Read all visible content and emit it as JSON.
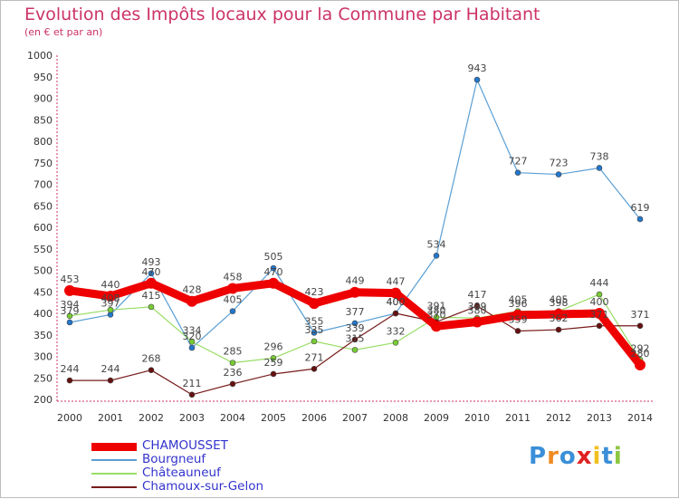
{
  "title": "Evolution des Impôts locaux pour la Commune par Habitant",
  "subtitle": "(en € et par an)",
  "logo": {
    "text": "Proxiti",
    "letters": [
      {
        "ch": "P",
        "color": "#3a8fd8"
      },
      {
        "ch": "r",
        "color": "#f08a24"
      },
      {
        "ch": "o",
        "color": "#3a8fd8"
      },
      {
        "ch": "x",
        "color": "#e02020"
      },
      {
        "ch": "i",
        "color": "#f0c020"
      },
      {
        "ch": "t",
        "color": "#3a8fd8"
      },
      {
        "ch": "i",
        "color": "#8cc63f"
      }
    ]
  },
  "chart_data": {
    "type": "line",
    "title": "Evolution des Impôts locaux pour la Commune par Habitant",
    "ylabel": "(en € et par an)",
    "xlabel": "",
    "x": [
      "2000",
      "2001",
      "2002",
      "2003",
      "2004",
      "2005",
      "2006",
      "2007",
      "2008",
      "2009",
      "2010",
      "2011",
      "2012",
      "2013",
      "2014"
    ],
    "ylim": [
      200,
      1000
    ],
    "yticks": [
      200,
      250,
      300,
      350,
      400,
      450,
      500,
      550,
      600,
      650,
      700,
      750,
      800,
      850,
      900,
      950,
      1000
    ],
    "grid": false,
    "legend_position": "bottom-left",
    "series": [
      {
        "name": "CHAMOUSSET",
        "color": "#ee0000",
        "marker": "#ee0000",
        "thick": true,
        "values": [
          453,
          440,
          470,
          428,
          458,
          470,
          423,
          449,
          447,
          370,
          380,
          396,
          398,
          400,
          280
        ],
        "labels": [
          "453",
          "440",
          "470",
          "428",
          "458",
          "470",
          "423",
          "449",
          "447",
          "370",
          "380",
          "396",
          "398",
          "400",
          "280"
        ]
      },
      {
        "name": "Bourgneuf",
        "color": "#5a9fd4",
        "marker": "#2277cc",
        "thick": false,
        "values": [
          379,
          397,
          493,
          320,
          405,
          505,
          355,
          377,
          400,
          534,
          943,
          727,
          723,
          738,
          619
        ],
        "labels": [
          "379",
          "397",
          "493",
          "320",
          "405",
          "505",
          "355",
          "377",
          "400",
          "534",
          "943",
          "727",
          "723",
          "738",
          "619"
        ]
      },
      {
        "name": "Châteauneuf",
        "color": "#99dd66",
        "marker": "#77cc33",
        "thick": false,
        "values": [
          394,
          408,
          415,
          334,
          285,
          296,
          335,
          315,
          332,
          391,
          389,
          405,
          405,
          444,
          292
        ],
        "labels": [
          "394",
          "408",
          "415",
          "334",
          "285",
          "296",
          "335",
          "315",
          "332",
          "391",
          "389",
          "405",
          "405",
          "444",
          "292"
        ]
      },
      {
        "name": "Chamoux-sur-Gelon",
        "color": "#771a1a",
        "marker": "#661111",
        "thick": false,
        "values": [
          244,
          244,
          268,
          211,
          236,
          259,
          271,
          339,
          400,
          380,
          417,
          359,
          362,
          371,
          371
        ],
        "labels": [
          "244",
          "244",
          "268",
          "211",
          "236",
          "259",
          "271",
          "339",
          "400",
          "380",
          "417",
          "359",
          "362",
          "371",
          "371"
        ]
      }
    ]
  }
}
